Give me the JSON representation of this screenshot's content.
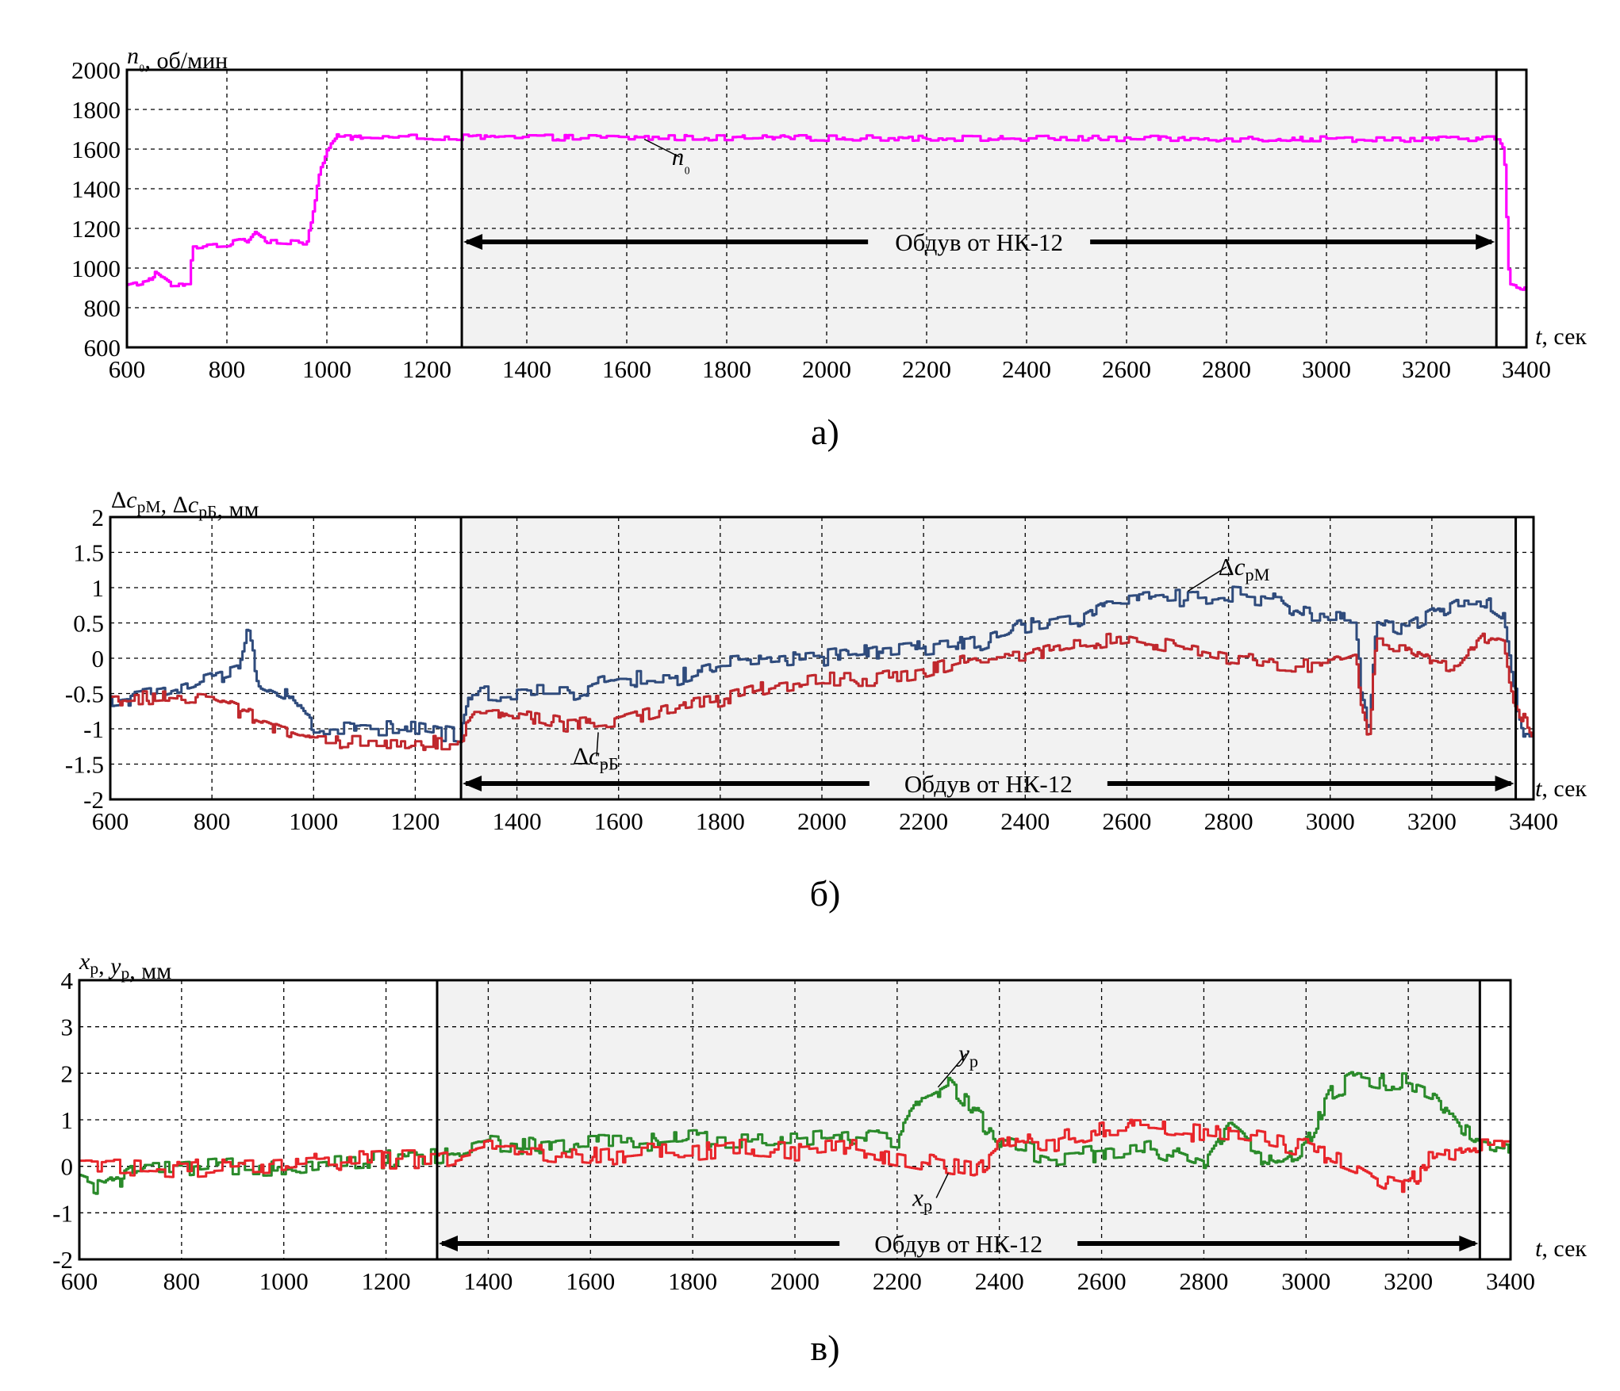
{
  "chart_data": [
    {
      "type": "line",
      "panel_label": "а)",
      "ylabel": "n₀, об/мин",
      "xlabel": "t, сек",
      "xlim": [
        600,
        3400
      ],
      "ylim": [
        600,
        2000
      ],
      "xticks": [
        600,
        800,
        1000,
        1200,
        1400,
        1600,
        1800,
        2000,
        2200,
        2400,
        2600,
        2800,
        3000,
        3200,
        3400
      ],
      "yticks": [
        600,
        800,
        1000,
        1200,
        1400,
        1600,
        1800,
        2000
      ],
      "grid": true,
      "shaded_interval": [
        1270,
        3340
      ],
      "annotation": "Обдув от НК-12",
      "series": [
        {
          "name": "n₀",
          "color": "#ff00ff",
          "noise": 14,
          "x": [
            600,
            640,
            655,
            690,
            725,
            730,
            800,
            840,
            855,
            880,
            960,
            970,
            985,
            1000,
            1020,
            3340,
            3345,
            3355,
            3365,
            3400
          ],
          "y": [
            910,
            930,
            975,
            910,
            910,
            1110,
            1120,
            1140,
            1190,
            1140,
            1130,
            1270,
            1480,
            1600,
            1660,
            1650,
            1650,
            1580,
            920,
            900
          ]
        }
      ],
      "series_label": {
        "text": "n₀",
        "at": [
          1690,
          1520
        ],
        "leader_to": [
          1635,
          1650
        ]
      }
    },
    {
      "type": "line",
      "panel_label": "б)",
      "ylabel": "ΔcрМ, ΔcрБ, мм",
      "xlabel": "t, сек",
      "xlim": [
        600,
        3400
      ],
      "ylim": [
        -2,
        2
      ],
      "xticks": [
        600,
        800,
        1000,
        1200,
        1400,
        1600,
        1800,
        2000,
        2200,
        2400,
        2600,
        2800,
        3000,
        3200,
        3400
      ],
      "xtick_labels": [
        "600",
        "800",
        "1000",
        "1200",
        "1400",
        "1600",
        "1800",
        "2000",
        "2200",
        "2400",
        "2600",
        "2800",
        "3000",
        "3200",
        "3400"
      ],
      "yticks": [
        -2,
        -1.5,
        -1,
        -0.5,
        0,
        0.5,
        1,
        1.5,
        2
      ],
      "ytick_labels": [
        "-2",
        "-1.5",
        "-1",
        "-0.5",
        "0",
        "0.5",
        "1",
        "1.5",
        "2"
      ],
      "grid": true,
      "shaded_interval": [
        1290,
        3365
      ],
      "annotation": "Обдув от НК-12",
      "series": [
        {
          "name": "ΔcрМ",
          "color": "#2f4b7c",
          "noise": 0.12,
          "x": [
            600,
            700,
            800,
            850,
            870,
            890,
            950,
            1000,
            1100,
            1200,
            1290,
            1310,
            1400,
            1500,
            1600,
            1700,
            1800,
            1900,
            2000,
            2100,
            2200,
            2300,
            2400,
            2500,
            2560,
            2600,
            2700,
            2800,
            2900,
            2950,
            3000,
            3050,
            3060,
            3075,
            3090,
            3150,
            3200,
            3250,
            3300,
            3340,
            3360,
            3380,
            3400
          ],
          "y": [
            -0.6,
            -0.5,
            -0.3,
            -0.2,
            0.4,
            -0.3,
            -0.5,
            -1.0,
            -1.0,
            -1.0,
            -1.1,
            -0.5,
            -0.5,
            -0.5,
            -0.3,
            -0.3,
            -0.1,
            -0.05,
            0.0,
            0.1,
            0.15,
            0.2,
            0.45,
            0.55,
            0.8,
            0.8,
            0.85,
            0.9,
            0.85,
            0.6,
            0.6,
            0.6,
            -0.6,
            -1.0,
            0.6,
            0.4,
            0.6,
            0.8,
            0.8,
            0.6,
            -0.4,
            -1.0,
            -1.0
          ]
        },
        {
          "name": "ΔcрБ",
          "color": "#c0282d",
          "noise": 0.1,
          "x": [
            600,
            700,
            800,
            900,
            1000,
            1100,
            1200,
            1290,
            1310,
            1400,
            1500,
            1600,
            1700,
            1800,
            1900,
            2000,
            2100,
            2200,
            2300,
            2400,
            2500,
            2600,
            2700,
            2800,
            2900,
            3000,
            3050,
            3060,
            3075,
            3090,
            3150,
            3200,
            3250,
            3300,
            3340,
            3360,
            3400
          ],
          "y": [
            -0.6,
            -0.55,
            -0.6,
            -0.9,
            -1.2,
            -1.2,
            -1.2,
            -1.2,
            -0.8,
            -0.8,
            -0.95,
            -0.9,
            -0.7,
            -0.6,
            -0.4,
            -0.3,
            -0.3,
            -0.2,
            0.0,
            0.0,
            0.2,
            0.3,
            0.15,
            0.0,
            -0.1,
            -0.1,
            0.0,
            -0.7,
            -1.1,
            0.2,
            0.2,
            -0.05,
            -0.1,
            0.3,
            0.2,
            -0.6,
            -1.1
          ]
        }
      ],
      "series_label_1": {
        "text": "ΔcрМ",
        "at": [
          2780,
          1.18
        ],
        "leader_to": [
          2720,
          0.95
        ]
      },
      "series_label_2": {
        "text": "ΔcрБ",
        "at": [
          1510,
          -1.5
        ],
        "leader_to": [
          1560,
          -1.05
        ]
      }
    },
    {
      "type": "line",
      "panel_label": "в)",
      "ylabel": "xр, yр, мм",
      "xlabel": "t, сек",
      "xlim": [
        600,
        3400
      ],
      "ylim": [
        -2,
        4
      ],
      "xticks": [
        600,
        800,
        1000,
        1200,
        1400,
        1600,
        1800,
        2000,
        2200,
        2400,
        2600,
        2800,
        3000,
        3200,
        3400
      ],
      "yticks": [
        -2,
        -1,
        0,
        1,
        2,
        3,
        4
      ],
      "grid": true,
      "shaded_interval": [
        1300,
        3340
      ],
      "annotation": "Обдув от НК-12",
      "series": [
        {
          "name": "yр",
          "color": "#2a8a2a",
          "noise": 0.2,
          "x": [
            600,
            650,
            700,
            800,
            900,
            1000,
            1100,
            1200,
            1300,
            1400,
            1500,
            1600,
            1700,
            1800,
            1900,
            2000,
            2100,
            2200,
            2250,
            2300,
            2350,
            2400,
            2500,
            2600,
            2700,
            2800,
            2850,
            2900,
            2950,
            3000,
            3050,
            3100,
            3150,
            3200,
            3250,
            3300,
            3340,
            3400
          ],
          "y": [
            -0.3,
            -0.5,
            -0.1,
            -0.1,
            0.0,
            0.0,
            0.1,
            0.15,
            0.2,
            0.5,
            0.4,
            0.5,
            0.5,
            0.6,
            0.6,
            0.6,
            0.7,
            0.6,
            1.5,
            1.8,
            1.2,
            0.5,
            0.2,
            0.3,
            0.4,
            0.0,
            0.8,
            0.3,
            0.0,
            0.5,
            1.6,
            1.9,
            1.8,
            1.8,
            1.6,
            0.8,
            0.5,
            0.4
          ]
        },
        {
          "name": "xр",
          "color": "#e8262b",
          "noise": 0.2,
          "x": [
            600,
            700,
            800,
            900,
            1000,
            1100,
            1200,
            1300,
            1400,
            1500,
            1600,
            1700,
            1800,
            1900,
            2000,
            2100,
            2200,
            2300,
            2350,
            2400,
            2450,
            2500,
            2600,
            2700,
            2800,
            2900,
            3000,
            3100,
            3150,
            3200,
            3250,
            3300,
            3340,
            3400
          ],
          "y": [
            0.0,
            0.0,
            -0.05,
            0.0,
            0.05,
            0.1,
            0.15,
            0.15,
            0.4,
            0.3,
            0.2,
            0.3,
            0.3,
            0.4,
            0.3,
            0.4,
            0.2,
            0.0,
            -0.1,
            0.4,
            0.5,
            0.5,
            0.8,
            0.8,
            0.7,
            0.6,
            0.4,
            0.0,
            -0.3,
            -0.4,
            0.3,
            0.2,
            0.4,
            0.4
          ]
        }
      ],
      "series_label_1": {
        "text": "yр",
        "at": [
          2320,
          2.25
        ],
        "leader_to": [
          2280,
          1.7
        ]
      },
      "series_label_2": {
        "text": "xр",
        "at": [
          2230,
          -0.85
        ],
        "leader_to": [
          2300,
          -0.15
        ]
      }
    }
  ]
}
